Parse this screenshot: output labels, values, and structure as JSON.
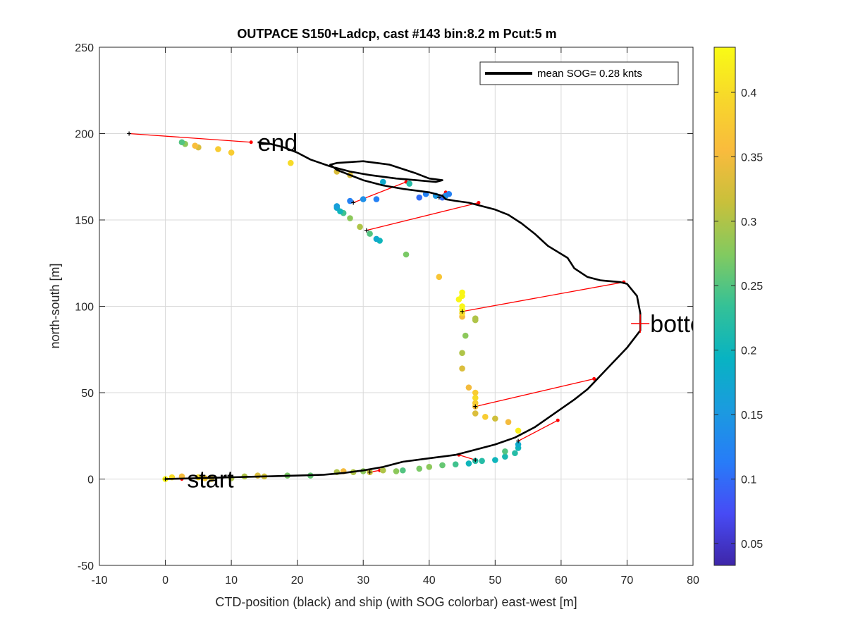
{
  "chart_data": {
    "type": "scatter",
    "title": "OUTPACE S150+Ladcp, cast #143 bin:8.2 m  Pcut:5 m",
    "xlabel": "CTD-position (black) and ship (with SOG colorbar) east-west [m]",
    "ylabel": "north-south [m]",
    "xlim": [
      -10,
      80
    ],
    "ylim": [
      -50,
      250
    ],
    "xticks": [
      -10,
      0,
      10,
      20,
      30,
      40,
      50,
      60,
      70,
      80
    ],
    "yticks": [
      -50,
      0,
      50,
      100,
      150,
      200,
      250
    ],
    "grid": true,
    "legend": {
      "position": "top-right",
      "label": "mean SOG=  0.28 knts"
    },
    "colorbar": {
      "range": [
        0.033,
        0.435
      ],
      "ticks": [
        0.05,
        0.1,
        0.15,
        0.2,
        0.25,
        0.3,
        0.35,
        0.4
      ],
      "colormap": "parula"
    },
    "annotations": [
      {
        "text": "start",
        "x": 3.3,
        "y": 0
      },
      {
        "text": "end",
        "x": 14,
        "y": 195
      },
      {
        "text": "bottom",
        "x": 73.5,
        "y": 90
      }
    ],
    "bottom_marker": {
      "x": 72,
      "y": 90
    },
    "ctd_track": {
      "name": "CTD-position",
      "x": [
        0,
        5,
        10,
        15,
        20,
        24,
        27,
        30,
        33,
        36,
        40,
        44,
        47,
        50,
        53,
        56,
        59,
        62,
        64,
        65,
        66,
        68,
        70,
        72,
        72,
        71.5,
        70,
        69,
        66,
        64,
        62,
        61,
        58,
        56,
        54,
        52,
        50,
        48,
        46,
        44,
        42.5,
        42,
        41,
        40,
        38,
        36,
        33,
        30,
        28,
        26,
        25,
        26,
        28,
        30,
        34,
        38,
        40,
        42,
        41,
        38,
        35,
        31,
        28,
        25,
        22,
        20,
        18,
        16,
        14
      ],
      "y": [
        0,
        0.5,
        1,
        1.5,
        2,
        2.5,
        3.5,
        5,
        7,
        10,
        12,
        14,
        17,
        20,
        24,
        30,
        38,
        46,
        52,
        56,
        60,
        68,
        76,
        86,
        96,
        106,
        113,
        114,
        115,
        117,
        122,
        128,
        135,
        142,
        148,
        153,
        156,
        158,
        160,
        161,
        162,
        164,
        165,
        166,
        167,
        168,
        170,
        173,
        176,
        179,
        182,
        183,
        183.5,
        184,
        182,
        177,
        174,
        173,
        172,
        173,
        174,
        176,
        178,
        181,
        185,
        189,
        192,
        194,
        195
      ]
    },
    "ship_positions": {
      "name": "ship (SOG)",
      "x": [
        0,
        1,
        2.5,
        5,
        6,
        7,
        10,
        12,
        14,
        15,
        18.5,
        22,
        26,
        27,
        28.5,
        30,
        31,
        33,
        35,
        36,
        38.5,
        40,
        42,
        44,
        46,
        47,
        48,
        50,
        51.5,
        51.5,
        53,
        53.5,
        53.5,
        53.5,
        52,
        50,
        48.5,
        47,
        47,
        47,
        47,
        47,
        46,
        45,
        45,
        45.5,
        47,
        47,
        45,
        45,
        45,
        45,
        44.5,
        45,
        45,
        41.5,
        36.5,
        32.5,
        32,
        31,
        29.5,
        28,
        27,
        26.5,
        26,
        26,
        28,
        30,
        32,
        38.5,
        39.5,
        41,
        42,
        42.5,
        43,
        37,
        33,
        28,
        26,
        19,
        10,
        8,
        5,
        4.5,
        3,
        2.5
      ],
      "y": [
        0,
        1,
        1.5,
        1,
        0.5,
        0,
        0.5,
        1.5,
        2,
        1.5,
        2,
        2,
        4,
        4.5,
        4,
        4.5,
        4,
        5,
        4.5,
        5,
        6,
        7,
        8,
        8.5,
        9,
        10.5,
        10.5,
        11,
        13,
        16,
        15,
        18,
        20,
        28,
        33,
        35,
        36,
        38,
        42,
        44,
        47,
        50,
        53,
        64,
        73,
        83,
        92,
        93,
        94,
        96,
        98,
        100,
        104,
        106,
        108,
        117,
        130,
        138,
        139,
        142,
        146,
        151,
        154,
        155,
        157,
        158,
        161,
        162,
        162,
        163,
        165,
        164,
        163,
        164,
        165,
        171,
        172,
        176,
        178,
        183,
        189,
        191,
        192,
        193,
        194,
        195
      ],
      "sog": [
        0.43,
        0.4,
        0.35,
        0.4,
        0.38,
        0.33,
        0.3,
        0.3,
        0.33,
        0.32,
        0.27,
        0.26,
        0.3,
        0.35,
        0.3,
        0.28,
        0.32,
        0.3,
        0.28,
        0.25,
        0.27,
        0.28,
        0.26,
        0.24,
        0.2,
        0.22,
        0.22,
        0.2,
        0.21,
        0.25,
        0.22,
        0.2,
        0.18,
        0.42,
        0.35,
        0.32,
        0.38,
        0.33,
        0.36,
        0.38,
        0.4,
        0.38,
        0.35,
        0.33,
        0.3,
        0.28,
        0.3,
        0.3,
        0.35,
        0.4,
        0.43,
        0.43,
        0.43,
        0.43,
        0.43,
        0.37,
        0.27,
        0.2,
        0.18,
        0.25,
        0.3,
        0.28,
        0.24,
        0.2,
        0.18,
        0.16,
        0.12,
        0.14,
        0.12,
        0.1,
        0.12,
        0.15,
        0.1,
        0.14,
        0.12,
        0.22,
        0.18,
        0.33,
        0.33,
        0.4,
        0.38,
        0.38,
        0.33,
        0.36,
        0.28,
        0.25
      ]
    },
    "connectors": [
      {
        "ship": [
          0,
          0
        ],
        "ctd": [
          2.5,
          0
        ]
      },
      {
        "ship": [
          -5.5,
          200
        ],
        "ctd": [
          13,
          195
        ]
      },
      {
        "ship": [
          28.5,
          160
        ],
        "ctd": [
          36.5,
          172
        ]
      },
      {
        "ship": [
          41.5,
          163
        ],
        "ctd": [
          42.5,
          166
        ]
      },
      {
        "ship": [
          30.5,
          144
        ],
        "ctd": [
          47.5,
          160
        ]
      },
      {
        "ship": [
          45,
          97
        ],
        "ctd": [
          69.5,
          114
        ]
      },
      {
        "ship": [
          47,
          42
        ],
        "ctd": [
          65,
          58
        ]
      },
      {
        "ship": [
          53.5,
          22
        ],
        "ctd": [
          59.5,
          34
        ]
      },
      {
        "ship": [
          47,
          11
        ],
        "ctd": [
          44.5,
          14
        ]
      },
      {
        "ship": [
          31,
          4
        ],
        "ctd": [
          32.5,
          5
        ]
      }
    ],
    "legend_line_color": "#000000",
    "connector_color": "#ff0000",
    "ctd_color": "#000000"
  }
}
